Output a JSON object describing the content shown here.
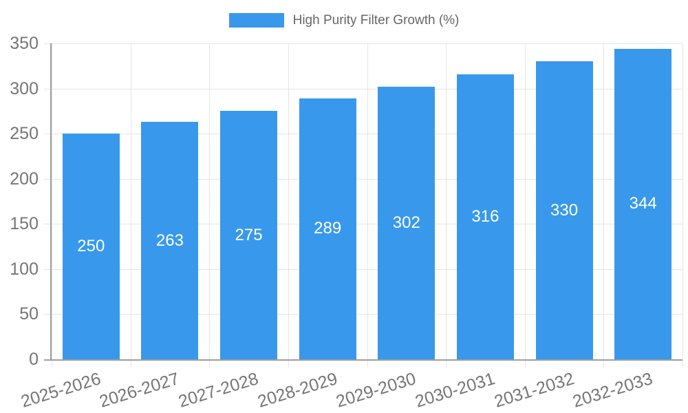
{
  "chart_data": {
    "type": "bar",
    "legend_label": "High Purity Filter Growth (%)",
    "legend_position": "top",
    "categories": [
      "2025-2026",
      "2026-2027",
      "2027-2028",
      "2028-2029",
      "2029-2030",
      "2030-2031",
      "2031-2032",
      "2032-2033"
    ],
    "values": [
      250,
      263,
      275,
      289,
      302,
      316,
      330,
      344
    ],
    "ylim": [
      0,
      350
    ],
    "ytick_step": 50,
    "yticks": [
      0,
      50,
      100,
      150,
      200,
      250,
      300,
      350
    ],
    "grid": true,
    "bar_color": "#3899ec",
    "value_label_color": "#ffffff",
    "grid_color": "#e5e5e5",
    "axis_color": "#9e9e9e",
    "tick_text_color": "#757575",
    "legend_text_color": "#666666",
    "background_color": "#ffffff"
  }
}
